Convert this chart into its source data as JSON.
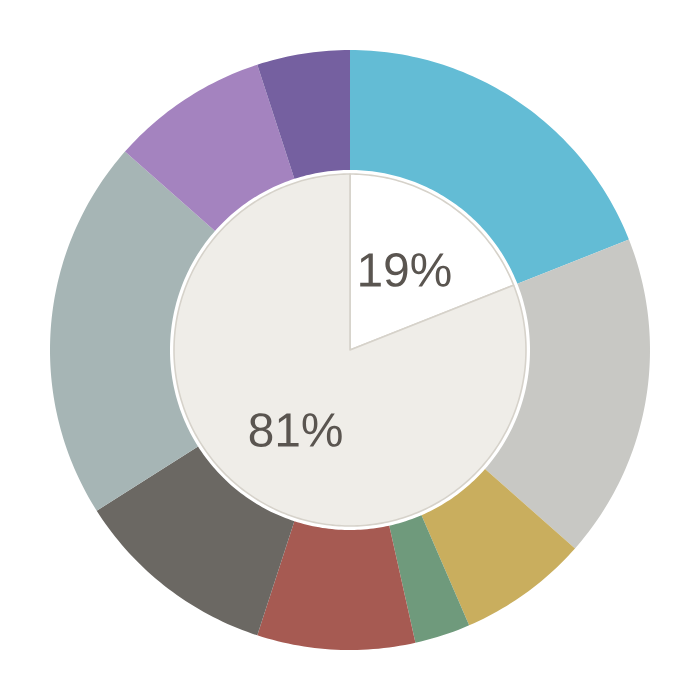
{
  "chart_data": [
    {
      "type": "donut",
      "categories": [
        null,
        null,
        null,
        null,
        null,
        null,
        null,
        null,
        null
      ],
      "values": [
        19,
        17.5,
        7,
        3,
        8.5,
        11,
        20.5,
        8.5,
        5
      ],
      "colors": [
        "#63bcd5",
        "#c8c8c4",
        "#c9ae5e",
        "#6f9a7c",
        "#a65a52",
        "#6b6863",
        "#a6b5b5",
        "#a483bf",
        "#7560a0"
      ]
    },
    {
      "type": "pie",
      "categories": [
        null,
        null
      ],
      "values": [
        19,
        81
      ],
      "colors": [
        "#ffffff",
        "#efede8"
      ],
      "value_labels": [
        "19%",
        "81%"
      ]
    }
  ]
}
